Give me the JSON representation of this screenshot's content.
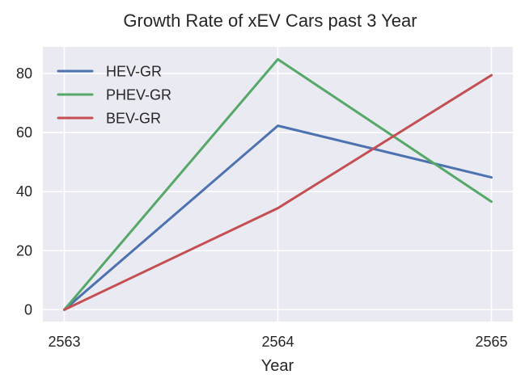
{
  "chart_data": {
    "type": "line",
    "title": "Growth Rate of xEV Cars past 3 Year",
    "xlabel": "Year",
    "ylabel": "",
    "categories": [
      "2563",
      "2564",
      "2565"
    ],
    "yticks": [
      0,
      20,
      40,
      60,
      80
    ],
    "ylim": [
      -4,
      89
    ],
    "grid": true,
    "legend_position": "top-left",
    "series": [
      {
        "name": "HEV-GR",
        "color": "#4c72b0",
        "values": [
          0,
          62.3,
          44.8
        ]
      },
      {
        "name": "PHEV-GR",
        "color": "#55a868",
        "values": [
          0,
          84.8,
          36.6
        ]
      },
      {
        "name": "BEV-GR",
        "color": "#c44e52",
        "values": [
          0,
          34.4,
          79.4
        ]
      }
    ]
  }
}
